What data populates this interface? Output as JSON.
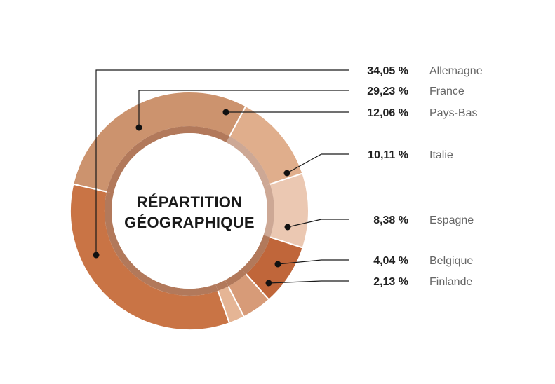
{
  "chart_data": {
    "type": "pie",
    "title": "RÉPARTITION GÉOGRAPHIQUE",
    "title_lines": [
      "RÉPARTITION",
      "GÉOGRAPHIQUE"
    ],
    "donut": true,
    "legend_placement": "right",
    "slices": [
      {
        "label": "Allemagne",
        "value": 34.05,
        "value_label": "34,05 %",
        "color": "#c97445"
      },
      {
        "label": "France",
        "value": 29.23,
        "value_label": "29,23 %",
        "color": "#cc936e"
      },
      {
        "label": "Pays-Bas",
        "value": 12.06,
        "value_label": "12,06 %",
        "color": "#e0ae8c"
      },
      {
        "label": "Italie",
        "value": 10.11,
        "value_label": "10,11 %",
        "color": "#ebc8b2"
      },
      {
        "label": "Espagne",
        "value": 8.38,
        "value_label": "8,38 %",
        "color": "#c0663a"
      },
      {
        "label": "Belgique",
        "value": 4.04,
        "value_label": "4,04 %",
        "color": "#d79b78"
      },
      {
        "label": "Finlande",
        "value": 2.13,
        "value_label": "2,13 %",
        "color": "#e5b595"
      }
    ],
    "inner_ring_color": "#a4613e"
  }
}
